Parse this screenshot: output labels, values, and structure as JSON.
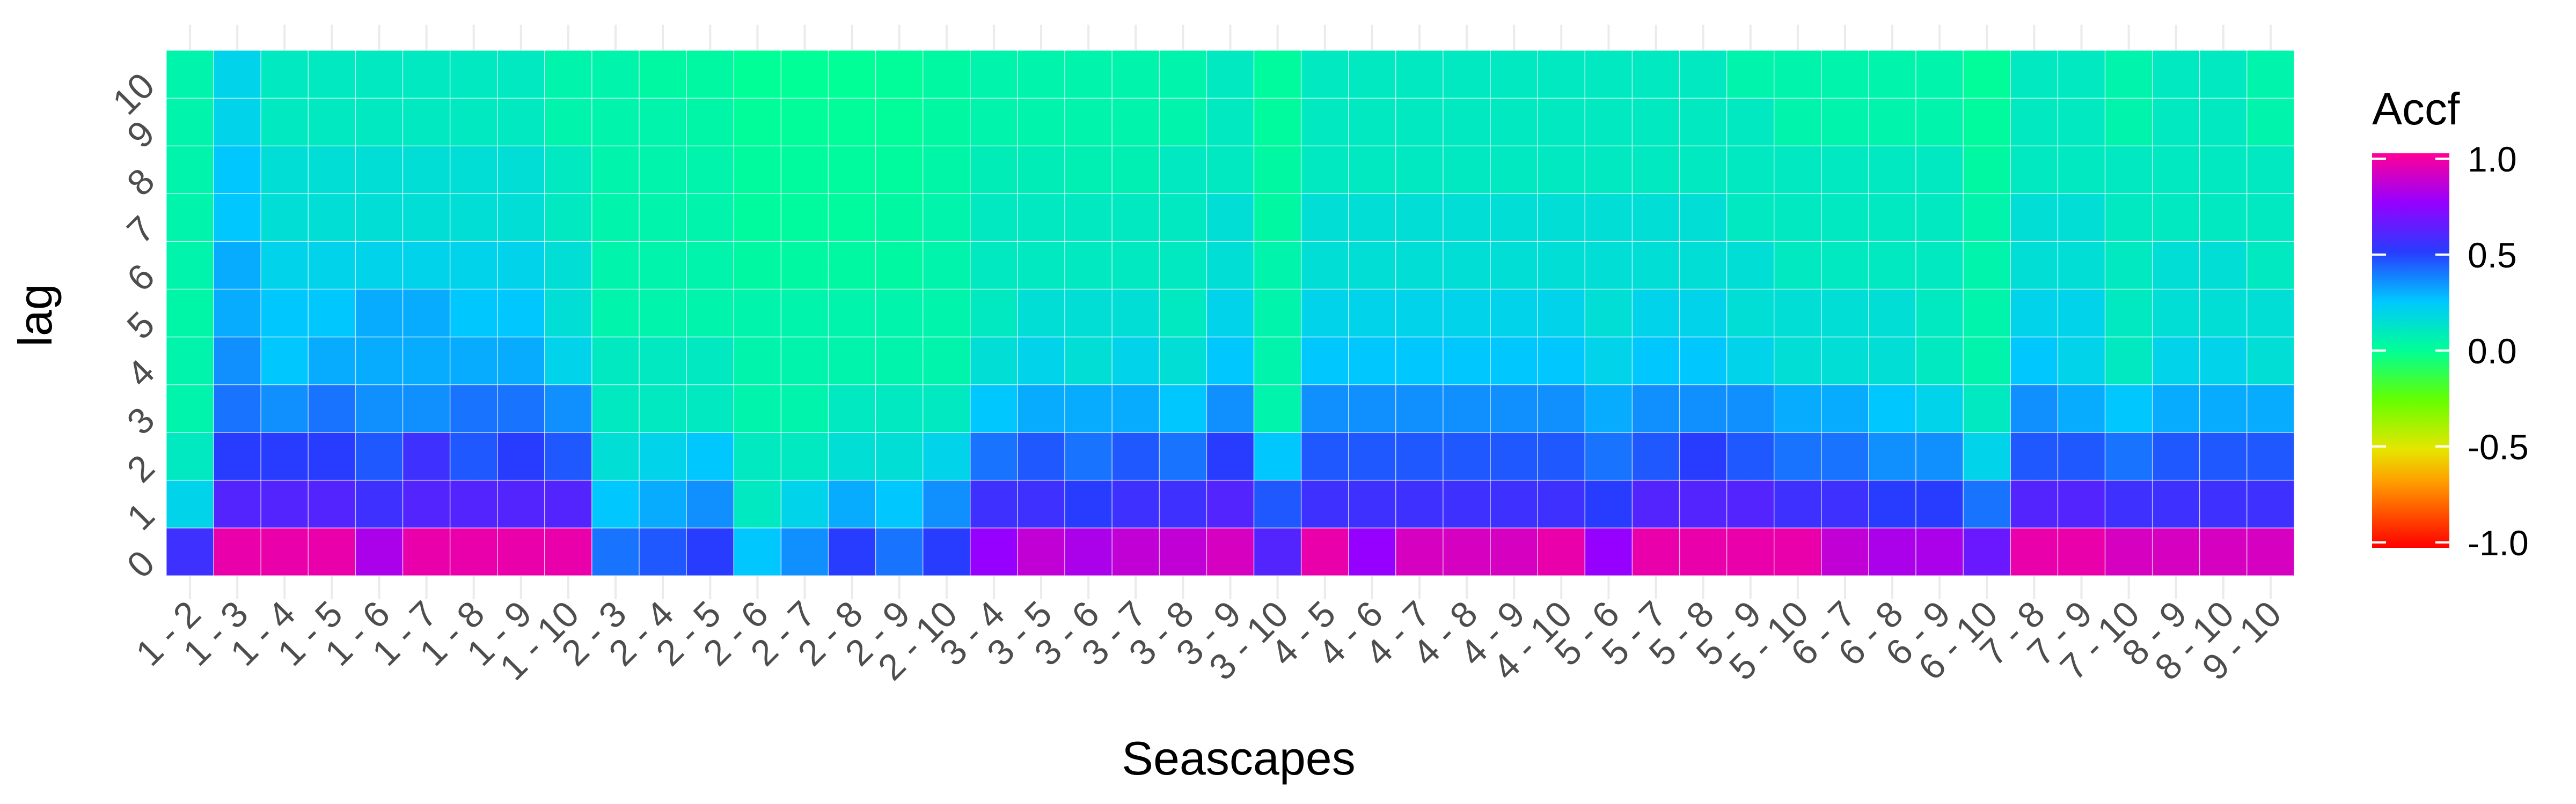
{
  "chart_data": {
    "type": "heatmap",
    "xlabel": "Seascapes",
    "ylabel": "lag",
    "x_categories": [
      "1 - 2",
      "1 - 3",
      "1 - 4",
      "1 - 5",
      "1 - 6",
      "1 - 7",
      "1 - 8",
      "1 - 9",
      "1 - 10",
      "2 - 3",
      "2 - 4",
      "2 - 5",
      "2 - 6",
      "2 - 7",
      "2 - 8",
      "2 - 9",
      "2 - 10",
      "3 - 4",
      "3 - 5",
      "3 - 6",
      "3 - 7",
      "3 - 8",
      "3 - 9",
      "3 - 10",
      "4 - 5",
      "4 - 6",
      "4 - 7",
      "4 - 8",
      "4 - 9",
      "4 - 10",
      "5 - 6",
      "5 - 7",
      "5 - 8",
      "5 - 9",
      "5 - 10",
      "6 - 7",
      "6 - 8",
      "6 - 9",
      "6 - 10",
      "7 - 8",
      "7 - 9",
      "7 - 10",
      "8 - 9",
      "8 - 10",
      "9 - 10"
    ],
    "y_categories": [
      "0",
      "1",
      "2",
      "3",
      "4",
      "5",
      "6",
      "7",
      "8",
      "9",
      "10"
    ],
    "values": [
      [
        0.55,
        0.2,
        0.1,
        0.05,
        0.05,
        0.04,
        0.05,
        0.05,
        0.05,
        0.05,
        0.05
      ],
      [
        0.95,
        0.6,
        0.5,
        0.4,
        0.35,
        0.3,
        0.3,
        0.25,
        0.25,
        0.2,
        0.2
      ],
      [
        0.95,
        0.6,
        0.5,
        0.35,
        0.25,
        0.25,
        0.2,
        0.15,
        0.15,
        0.1,
        0.1
      ],
      [
        0.95,
        0.6,
        0.5,
        0.4,
        0.3,
        0.25,
        0.2,
        0.15,
        0.15,
        0.1,
        0.1
      ],
      [
        0.8,
        0.55,
        0.45,
        0.35,
        0.3,
        0.3,
        0.2,
        0.15,
        0.15,
        0.1,
        0.1
      ],
      [
        0.95,
        0.6,
        0.55,
        0.35,
        0.3,
        0.3,
        0.2,
        0.15,
        0.15,
        0.1,
        0.1
      ],
      [
        0.95,
        0.6,
        0.45,
        0.4,
        0.3,
        0.25,
        0.2,
        0.15,
        0.15,
        0.1,
        0.1
      ],
      [
        0.95,
        0.6,
        0.5,
        0.4,
        0.3,
        0.25,
        0.2,
        0.15,
        0.15,
        0.1,
        0.1
      ],
      [
        0.95,
        0.6,
        0.45,
        0.35,
        0.2,
        0.15,
        0.15,
        0.1,
        0.1,
        0.05,
        0.05
      ],
      [
        0.4,
        0.25,
        0.15,
        0.1,
        0.1,
        0.05,
        0.05,
        0.05,
        0.05,
        0.05,
        0.05
      ],
      [
        0.45,
        0.3,
        0.2,
        0.1,
        0.1,
        0.05,
        0.05,
        0.05,
        0.05,
        0.05,
        0.03
      ],
      [
        0.5,
        0.35,
        0.25,
        0.1,
        0.1,
        0.05,
        0.05,
        0.05,
        0.05,
        0.04,
        0.03
      ],
      [
        0.25,
        0.1,
        0.1,
        0.05,
        0.05,
        0.05,
        0.03,
        0.02,
        0.02,
        0.01,
        0.0
      ],
      [
        0.35,
        0.2,
        0.1,
        0.05,
        0.05,
        0.05,
        0.03,
        0.02,
        0.02,
        0.01,
        0.0
      ],
      [
        0.5,
        0.3,
        0.15,
        0.1,
        0.05,
        0.05,
        0.03,
        0.02,
        0.02,
        0.01,
        0.0
      ],
      [
        0.4,
        0.25,
        0.15,
        0.1,
        0.05,
        0.05,
        0.03,
        0.03,
        0.02,
        0.01,
        0.01
      ],
      [
        0.5,
        0.35,
        0.2,
        0.1,
        0.05,
        0.05,
        0.05,
        0.05,
        0.04,
        0.03,
        0.03
      ],
      [
        0.75,
        0.55,
        0.4,
        0.25,
        0.15,
        0.1,
        0.1,
        0.1,
        0.08,
        0.05,
        0.05
      ],
      [
        0.85,
        0.55,
        0.45,
        0.3,
        0.2,
        0.15,
        0.1,
        0.1,
        0.08,
        0.05,
        0.05
      ],
      [
        0.8,
        0.5,
        0.4,
        0.3,
        0.15,
        0.15,
        0.1,
        0.1,
        0.07,
        0.05,
        0.05
      ],
      [
        0.85,
        0.55,
        0.45,
        0.3,
        0.2,
        0.15,
        0.1,
        0.1,
        0.07,
        0.05,
        0.05
      ],
      [
        0.85,
        0.55,
        0.4,
        0.25,
        0.15,
        0.1,
        0.1,
        0.1,
        0.1,
        0.05,
        0.05
      ],
      [
        0.9,
        0.6,
        0.5,
        0.35,
        0.25,
        0.2,
        0.15,
        0.15,
        0.1,
        0.1,
        0.1
      ],
      [
        0.6,
        0.45,
        0.25,
        0.05,
        0.05,
        0.05,
        0.05,
        0.03,
        0.03,
        0.02,
        0.02
      ],
      [
        0.95,
        0.55,
        0.45,
        0.35,
        0.25,
        0.2,
        0.15,
        0.15,
        0.1,
        0.1,
        0.1
      ],
      [
        0.75,
        0.55,
        0.45,
        0.35,
        0.25,
        0.2,
        0.15,
        0.15,
        0.1,
        0.1,
        0.1
      ],
      [
        0.9,
        0.55,
        0.45,
        0.35,
        0.25,
        0.2,
        0.15,
        0.15,
        0.1,
        0.1,
        0.1
      ],
      [
        0.9,
        0.55,
        0.45,
        0.35,
        0.25,
        0.2,
        0.15,
        0.15,
        0.1,
        0.1,
        0.1
      ],
      [
        0.9,
        0.55,
        0.45,
        0.35,
        0.25,
        0.2,
        0.15,
        0.15,
        0.1,
        0.1,
        0.1
      ],
      [
        0.95,
        0.55,
        0.45,
        0.35,
        0.25,
        0.2,
        0.15,
        0.15,
        0.1,
        0.1,
        0.1
      ],
      [
        0.75,
        0.5,
        0.4,
        0.3,
        0.2,
        0.15,
        0.15,
        0.15,
        0.1,
        0.1,
        0.1
      ],
      [
        0.95,
        0.6,
        0.45,
        0.35,
        0.25,
        0.2,
        0.15,
        0.15,
        0.1,
        0.1,
        0.1
      ],
      [
        0.95,
        0.6,
        0.5,
        0.35,
        0.25,
        0.2,
        0.15,
        0.15,
        0.1,
        0.1,
        0.1
      ],
      [
        0.95,
        0.6,
        0.45,
        0.35,
        0.2,
        0.15,
        0.15,
        0.1,
        0.1,
        0.1,
        0.05
      ],
      [
        0.95,
        0.55,
        0.4,
        0.3,
        0.15,
        0.15,
        0.1,
        0.1,
        0.1,
        0.05,
        0.05
      ],
      [
        0.85,
        0.55,
        0.4,
        0.3,
        0.15,
        0.15,
        0.1,
        0.1,
        0.1,
        0.05,
        0.05
      ],
      [
        0.8,
        0.5,
        0.35,
        0.25,
        0.15,
        0.15,
        0.1,
        0.1,
        0.1,
        0.05,
        0.05
      ],
      [
        0.8,
        0.5,
        0.35,
        0.2,
        0.1,
        0.1,
        0.1,
        0.1,
        0.1,
        0.05,
        0.05
      ],
      [
        0.65,
        0.4,
        0.2,
        0.1,
        0.05,
        0.05,
        0.05,
        0.05,
        0.03,
        0.02,
        0.01
      ],
      [
        0.95,
        0.6,
        0.45,
        0.35,
        0.25,
        0.2,
        0.15,
        0.15,
        0.1,
        0.1,
        0.1
      ],
      [
        0.95,
        0.6,
        0.45,
        0.3,
        0.2,
        0.2,
        0.15,
        0.15,
        0.1,
        0.1,
        0.1
      ],
      [
        0.9,
        0.55,
        0.4,
        0.25,
        0.1,
        0.1,
        0.1,
        0.1,
        0.1,
        0.05,
        0.05
      ],
      [
        0.9,
        0.55,
        0.45,
        0.3,
        0.2,
        0.15,
        0.15,
        0.1,
        0.1,
        0.1,
        0.1
      ],
      [
        0.9,
        0.55,
        0.45,
        0.3,
        0.2,
        0.15,
        0.15,
        0.1,
        0.1,
        0.1,
        0.1
      ],
      [
        0.9,
        0.55,
        0.45,
        0.3,
        0.15,
        0.15,
        0.1,
        0.1,
        0.1,
        0.05,
        0.05
      ]
    ],
    "color_scale": {
      "title": "Accf",
      "min": -1.0,
      "max": 1.0,
      "breaks": [
        1.0,
        0.5,
        0.0,
        -0.5,
        -1.0
      ],
      "break_labels": [
        "1.0",
        "0.5",
        "0.0",
        "-0.5",
        "-1.0"
      ],
      "palette": "rainbow (red → yellow → green → cyan → blue → purple → magenta)"
    },
    "grid": true,
    "legend_position": "right"
  }
}
